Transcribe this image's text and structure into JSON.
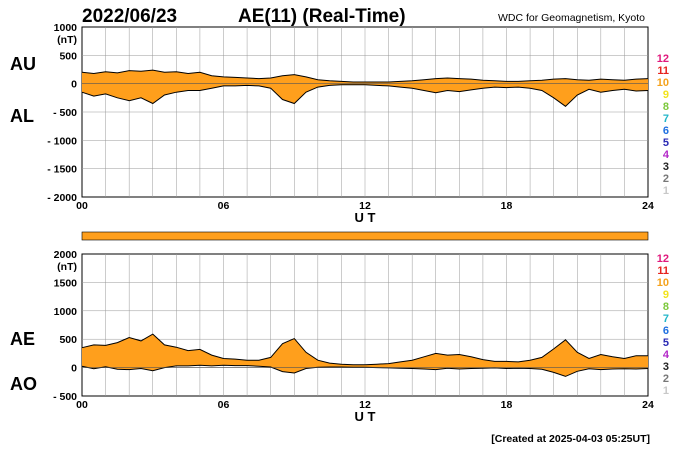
{
  "header": {
    "date": "2022/06/23",
    "title": "AE(11) (Real-Time)",
    "source": "WDC for Geomagnetism, Kyoto"
  },
  "footer": {
    "created": "[Created at 2025-04-03 05:25UT]"
  },
  "station_count_legend": [
    {
      "label": "12",
      "color": "#e0197d"
    },
    {
      "label": "11",
      "color": "#e6231e"
    },
    {
      "label": "10",
      "color": "#f5a21b"
    },
    {
      "label": "9",
      "color": "#f2e41c"
    },
    {
      "label": "8",
      "color": "#7cc83c"
    },
    {
      "label": "7",
      "color": "#22b6c8"
    },
    {
      "label": "6",
      "color": "#1e6fe0"
    },
    {
      "label": "5",
      "color": "#2a2ab4"
    },
    {
      "label": "4",
      "color": "#b428c8"
    },
    {
      "label": "3",
      "color": "#222222"
    },
    {
      "label": "2",
      "color": "#777777"
    },
    {
      "label": "1",
      "color": "#c8c8c8"
    }
  ],
  "colors": {
    "fill": "#ff9f1c",
    "line": "#000000",
    "grid": "#999999",
    "bar": "#ff9f1c"
  },
  "chart_data": [
    {
      "type": "area",
      "panel": "AU/AL",
      "ylabel_top": "AU",
      "ylabel_bottom": "AL",
      "unit_label": "(nT)",
      "xlabel": "U T",
      "xlim": [
        0,
        24
      ],
      "ylim": [
        -2000,
        1000
      ],
      "x_ticks": [
        0,
        6,
        12,
        18,
        24
      ],
      "x_tick_labels": [
        "00",
        "06",
        "12",
        "18",
        "24"
      ],
      "y_ticks": [
        1000,
        500,
        0,
        -500,
        -1000,
        -1500,
        -2000
      ],
      "y_tick_labels": [
        "1000",
        "500",
        "0",
        "- 500",
        "- 1000",
        "- 1500",
        "- 2000"
      ],
      "grid_x_step_hours": 1,
      "grid": true,
      "series": [
        {
          "name": "AU",
          "x": [
            0,
            0.5,
            1,
            1.5,
            2,
            2.5,
            3,
            3.5,
            4,
            4.5,
            5,
            5.5,
            6,
            6.5,
            7,
            7.5,
            8,
            8.5,
            9,
            9.5,
            10,
            10.5,
            11,
            11.5,
            12,
            12.5,
            13,
            13.5,
            14,
            14.5,
            15,
            15.5,
            16,
            16.5,
            17,
            17.5,
            18,
            18.5,
            19,
            19.5,
            20,
            20.5,
            21,
            21.5,
            22,
            22.5,
            23,
            23.5,
            24
          ],
          "values": [
            200,
            180,
            210,
            190,
            230,
            220,
            240,
            200,
            210,
            180,
            200,
            140,
            120,
            110,
            100,
            90,
            100,
            140,
            160,
            120,
            70,
            50,
            40,
            30,
            30,
            30,
            30,
            40,
            50,
            70,
            90,
            100,
            90,
            80,
            60,
            50,
            40,
            40,
            50,
            60,
            80,
            90,
            70,
            60,
            80,
            70,
            60,
            80,
            90
          ]
        },
        {
          "name": "AL",
          "x": [
            0,
            0.5,
            1,
            1.5,
            2,
            2.5,
            3,
            3.5,
            4,
            4.5,
            5,
            5.5,
            6,
            6.5,
            7,
            7.5,
            8,
            8.5,
            9,
            9.5,
            10,
            10.5,
            11,
            11.5,
            12,
            12.5,
            13,
            13.5,
            14,
            14.5,
            15,
            15.5,
            16,
            16.5,
            17,
            17.5,
            18,
            18.5,
            19,
            19.5,
            20,
            20.5,
            21,
            21.5,
            22,
            22.5,
            23,
            23.5,
            24
          ],
          "values": [
            -150,
            -220,
            -180,
            -250,
            -300,
            -250,
            -350,
            -200,
            -150,
            -120,
            -120,
            -80,
            -40,
            -40,
            -30,
            -40,
            -80,
            -280,
            -350,
            -150,
            -60,
            -30,
            -20,
            -20,
            -20,
            -30,
            -40,
            -60,
            -80,
            -120,
            -160,
            -120,
            -140,
            -110,
            -80,
            -60,
            -70,
            -60,
            -80,
            -120,
            -250,
            -400,
            -200,
            -100,
            -150,
            -120,
            -100,
            -130,
            -120
          ]
        }
      ]
    },
    {
      "type": "area",
      "panel": "AE/AO",
      "ylabel_top": "AE",
      "ylabel_bottom": "AO",
      "unit_label": "(nT)",
      "xlabel": "U T",
      "xlim": [
        0,
        24
      ],
      "ylim": [
        -500,
        2000
      ],
      "x_ticks": [
        0,
        6,
        12,
        18,
        24
      ],
      "x_tick_labels": [
        "00",
        "06",
        "12",
        "18",
        "24"
      ],
      "y_ticks": [
        2000,
        1500,
        1000,
        500,
        0,
        -500
      ],
      "y_tick_labels": [
        "2000",
        "1500",
        "1000",
        "500",
        "0",
        "- 500"
      ],
      "grid_x_step_hours": 1,
      "grid": true,
      "series": [
        {
          "name": "AE",
          "x": [
            0,
            0.5,
            1,
            1.5,
            2,
            2.5,
            3,
            3.5,
            4,
            4.5,
            5,
            5.5,
            6,
            6.5,
            7,
            7.5,
            8,
            8.5,
            9,
            9.5,
            10,
            10.5,
            11,
            11.5,
            12,
            12.5,
            13,
            13.5,
            14,
            14.5,
            15,
            15.5,
            16,
            16.5,
            17,
            17.5,
            18,
            18.5,
            19,
            19.5,
            20,
            20.5,
            21,
            21.5,
            22,
            22.5,
            23,
            23.5,
            24
          ],
          "values": [
            350,
            400,
            390,
            440,
            530,
            470,
            590,
            400,
            360,
            300,
            320,
            220,
            160,
            150,
            130,
            130,
            180,
            420,
            510,
            270,
            130,
            80,
            60,
            50,
            50,
            60,
            70,
            100,
            130,
            190,
            250,
            220,
            230,
            190,
            140,
            110,
            110,
            100,
            130,
            180,
            330,
            490,
            270,
            160,
            230,
            190,
            160,
            210,
            210
          ]
        },
        {
          "name": "AO",
          "x": [
            0,
            0.5,
            1,
            1.5,
            2,
            2.5,
            3,
            3.5,
            4,
            4.5,
            5,
            5.5,
            6,
            6.5,
            7,
            7.5,
            8,
            8.5,
            9,
            9.5,
            10,
            10.5,
            11,
            11.5,
            12,
            12.5,
            13,
            13.5,
            14,
            14.5,
            15,
            15.5,
            16,
            16.5,
            17,
            17.5,
            18,
            18.5,
            19,
            19.5,
            20,
            20.5,
            21,
            21.5,
            22,
            22.5,
            23,
            23.5,
            24
          ],
          "values": [
            25,
            -20,
            15,
            -30,
            -35,
            -15,
            -55,
            0,
            30,
            30,
            40,
            30,
            40,
            35,
            35,
            25,
            10,
            -70,
            -95,
            -15,
            5,
            10,
            10,
            5,
            5,
            0,
            -5,
            -10,
            -15,
            -25,
            -35,
            -10,
            -25,
            -15,
            -10,
            -5,
            -15,
            -10,
            -15,
            -30,
            -85,
            -155,
            -65,
            -20,
            -35,
            -25,
            -20,
            -25,
            -15
          ]
        }
      ]
    }
  ]
}
